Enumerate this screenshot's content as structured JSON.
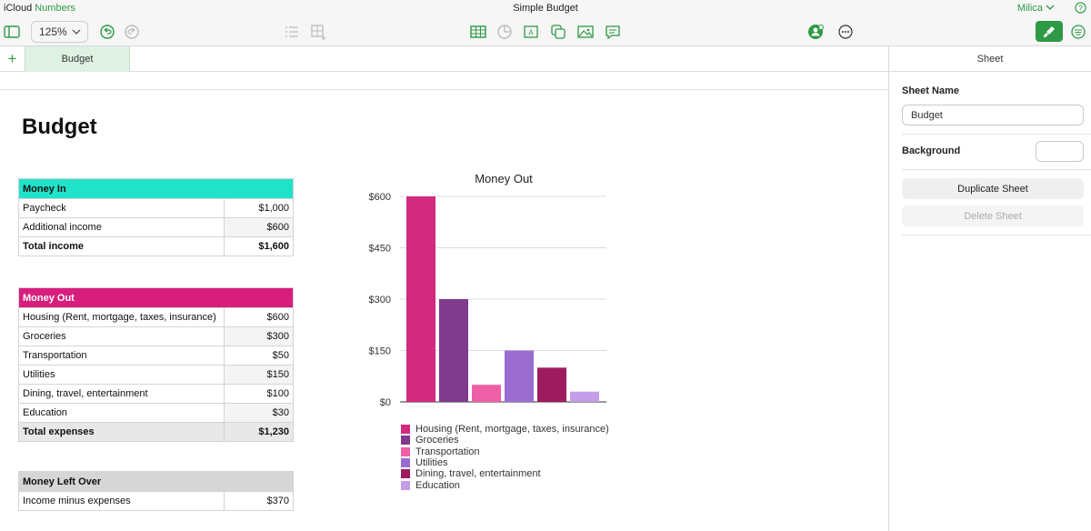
{
  "app": {
    "brand_part1": "iCloud",
    "brand_part2": "Numbers",
    "document_title": "Simple Budget",
    "user": "Milica"
  },
  "toolbar": {
    "zoom": "125%"
  },
  "tabs": {
    "sheets": [
      "Budget"
    ]
  },
  "sheet": {
    "heading": "Budget"
  },
  "money_in": {
    "header": "Money In",
    "rows": [
      {
        "label": "Paycheck",
        "value": "$1,000"
      },
      {
        "label": "Additional income",
        "value": "$600"
      }
    ],
    "total": {
      "label": "Total income",
      "value": "$1,600"
    }
  },
  "money_out": {
    "header": "Money Out",
    "rows": [
      {
        "label": "Housing (Rent, mortgage, taxes, insurance)",
        "value": "$600"
      },
      {
        "label": "Groceries",
        "value": "$300"
      },
      {
        "label": "Transportation",
        "value": "$50"
      },
      {
        "label": "Utilities",
        "value": "$150"
      },
      {
        "label": "Dining, travel, entertainment",
        "value": "$100"
      },
      {
        "label": "Education",
        "value": "$30"
      }
    ],
    "total": {
      "label": "Total expenses",
      "value": "$1,230"
    }
  },
  "money_left": {
    "header": "Money Left Over",
    "rows": [
      {
        "label": "Income minus expenses",
        "value": "$370"
      }
    ]
  },
  "chart_data": {
    "type": "bar",
    "title": "Money Out",
    "categories": [
      "Housing (Rent, mortgage, taxes, insurance)",
      "Groceries",
      "Transportation",
      "Utilities",
      "Dining, travel, entertainment",
      "Education"
    ],
    "values": [
      600,
      300,
      50,
      150,
      100,
      30
    ],
    "colors": [
      "#d12a7f",
      "#7f3a8e",
      "#ef5fa7",
      "#9b6cd0",
      "#9e1b5f",
      "#c49de8"
    ],
    "yticks": [
      "$0",
      "$150",
      "$300",
      "$450",
      "$600"
    ],
    "ylim": [
      0,
      600
    ],
    "grid": true,
    "legend": "bottom"
  },
  "panel": {
    "tab": "Sheet",
    "sheet_name_label": "Sheet Name",
    "sheet_name_value": "Budget",
    "background_label": "Background",
    "duplicate_label": "Duplicate Sheet",
    "delete_label": "Delete Sheet"
  }
}
